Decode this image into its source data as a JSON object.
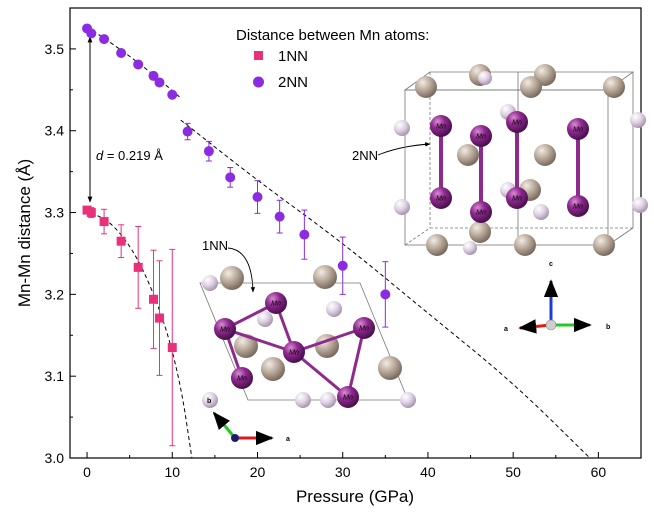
{
  "chart_data": {
    "type": "scatter",
    "xlabel": "Pressure (GPa)",
    "ylabel": "Mn-Mn distance (Å)",
    "xlim": [
      -2,
      65
    ],
    "ylim": [
      3.0,
      3.55
    ],
    "xticks": [
      0,
      10,
      20,
      30,
      40,
      50,
      60
    ],
    "xtick_labels": [
      "0",
      "10",
      "20",
      "30",
      "40",
      "50",
      "60"
    ],
    "yticks": [
      3.0,
      3.1,
      3.2,
      3.3,
      3.4,
      3.5
    ],
    "ytick_labels": [
      "3.0",
      "3.1",
      "3.2",
      "3.3",
      "3.4",
      "3.5"
    ],
    "legend": {
      "title": "Distance between Mn atoms:",
      "position": "top-center"
    },
    "series": [
      {
        "name": "1NN",
        "color": "#e8317a",
        "marker": "square",
        "points": [
          {
            "x": 0.0,
            "y": 3.303,
            "err": 0.004
          },
          {
            "x": 0.5,
            "y": 3.3,
            "err": 0.006
          },
          {
            "x": 2.0,
            "y": 3.289,
            "err": 0.015
          },
          {
            "x": 4.0,
            "y": 3.265,
            "err": 0.02
          },
          {
            "x": 6.0,
            "y": 3.233,
            "err": 0.05
          },
          {
            "x": 7.8,
            "y": 3.194,
            "err": 0.06
          },
          {
            "x": 8.5,
            "y": 3.171,
            "err": 0.07
          },
          {
            "x": 10.0,
            "y": 3.135,
            "err": 0.12
          }
        ]
      },
      {
        "name": "2NN",
        "color": "#8b2be2",
        "marker": "circle",
        "points": [
          {
            "x": 0.0,
            "y": 3.525,
            "err": 0.002
          },
          {
            "x": 0.5,
            "y": 3.519,
            "err": 0.002
          },
          {
            "x": 2.0,
            "y": 3.512,
            "err": 0.002
          },
          {
            "x": 4.0,
            "y": 3.495,
            "err": 0.002
          },
          {
            "x": 6.0,
            "y": 3.481,
            "err": 0.002
          },
          {
            "x": 7.8,
            "y": 3.467,
            "err": 0.003
          },
          {
            "x": 8.5,
            "y": 3.459,
            "err": 0.003
          },
          {
            "x": 10.0,
            "y": 3.444,
            "err": 0.004
          },
          {
            "x": 11.8,
            "y": 3.399,
            "err": 0.01
          },
          {
            "x": 14.3,
            "y": 3.375,
            "err": 0.012
          },
          {
            "x": 16.8,
            "y": 3.343,
            "err": 0.012
          },
          {
            "x": 20.0,
            "y": 3.319,
            "err": 0.02
          },
          {
            "x": 22.6,
            "y": 3.295,
            "err": 0.02
          },
          {
            "x": 25.5,
            "y": 3.273,
            "err": 0.03
          },
          {
            "x": 30.0,
            "y": 3.235,
            "err": 0.035
          },
          {
            "x": 35.0,
            "y": 3.2,
            "err": 0.04
          }
        ]
      }
    ],
    "fit_curves": [
      {
        "points": [
          [
            0,
            3.527
          ],
          [
            4,
            3.499
          ],
          [
            8,
            3.467
          ],
          [
            11,
            3.44
          ]
        ]
      },
      {
        "points": [
          [
            11,
            3.413
          ],
          [
            20,
            3.339
          ],
          [
            30,
            3.263
          ],
          [
            40,
            3.177
          ],
          [
            50,
            3.092
          ],
          [
            59,
            3.0
          ]
        ]
      },
      {
        "points": [
          [
            0.5,
            3.3
          ],
          [
            3,
            3.287
          ],
          [
            6,
            3.245
          ],
          [
            9,
            3.17
          ],
          [
            11,
            3.09
          ],
          [
            12.3,
            3.0
          ]
        ]
      }
    ],
    "annotations": {
      "d_label_prefix": "d",
      "d_label_value": " = 0.219 Å",
      "nn1_label": "1NN",
      "nn2_label": "2NN",
      "atom_label": "Mn",
      "axes_a": "a",
      "axes_b": "b",
      "axes_c": "c"
    }
  }
}
